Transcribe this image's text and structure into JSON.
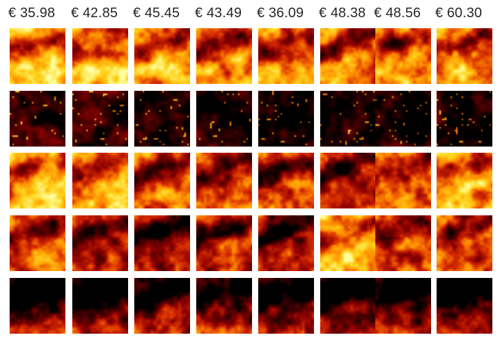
{
  "prices": [
    "€ 35.98",
    "€ 42.85",
    "€ 45.45",
    "€ 43.49",
    "€ 36.09",
    "€ 48.38",
    "€ 48.56",
    "€ 60.30"
  ],
  "colormap": [
    "#000000",
    "#3a0000",
    "#8b0000",
    "#d42a00",
    "#ff8c00",
    "#ffd21a",
    "#ffffa0"
  ],
  "rows": [
    {
      "brightness": [
        0.78,
        0.75,
        0.72,
        0.68,
        0.7,
        0.66,
        0.64,
        0.72
      ]
    },
    {
      "brightness": [
        0.1,
        0.12,
        0.06,
        0.05,
        0.04,
        0.05,
        0.06,
        0.08
      ]
    },
    {
      "brightness": [
        0.82,
        0.72,
        0.62,
        0.6,
        0.55,
        0.5,
        0.6,
        0.74
      ]
    },
    {
      "brightness": [
        0.55,
        0.48,
        0.42,
        0.48,
        0.45,
        0.8,
        0.55,
        0.6
      ]
    },
    {
      "brightness": [
        0.18,
        0.22,
        0.26,
        0.3,
        0.26,
        0.18,
        0.24,
        0.16
      ]
    }
  ]
}
